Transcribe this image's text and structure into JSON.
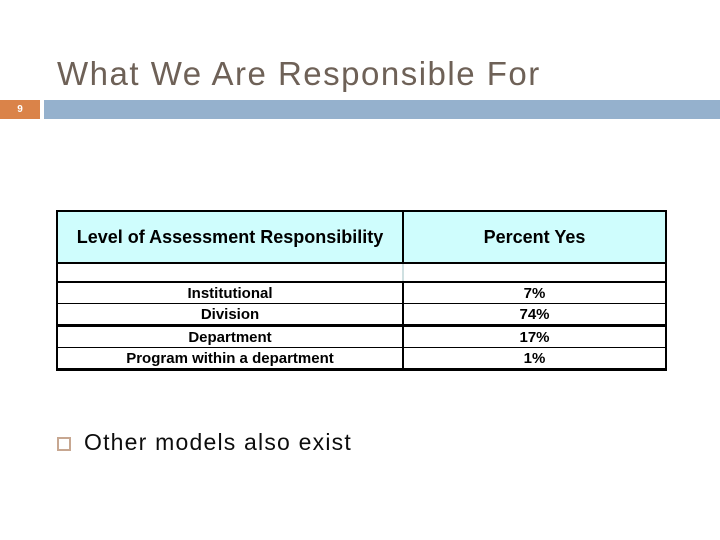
{
  "slide": {
    "title": "What We Are Responsible For",
    "page_number": "9",
    "bullet_text": "Other models also exist"
  },
  "colors": {
    "title_text": "#6E6157",
    "page_number_box": "#DA8349",
    "accent_band": "#95B1CD",
    "table_header_bg": "#CFFDFD",
    "bullet_square_border": "#C7A791"
  },
  "table": {
    "header": {
      "col1": "Level of Assessment Responsibility",
      "col2": "Percent Yes"
    },
    "rows": [
      {
        "label": "Institutional",
        "value": "7%"
      },
      {
        "label": "Division",
        "value": "74%"
      },
      {
        "label": "Department",
        "value": "17%"
      },
      {
        "label": "Program within a department",
        "value": "1%"
      }
    ]
  },
  "chart_data": {
    "type": "table",
    "title": "Level of Assessment Responsibility vs Percent Yes",
    "columns": [
      "Level of Assessment Responsibility",
      "Percent Yes"
    ],
    "rows": [
      [
        "Institutional",
        "7%"
      ],
      [
        "Division",
        "74%"
      ],
      [
        "Department",
        "17%"
      ],
      [
        "Program within a department",
        "1%"
      ]
    ]
  }
}
